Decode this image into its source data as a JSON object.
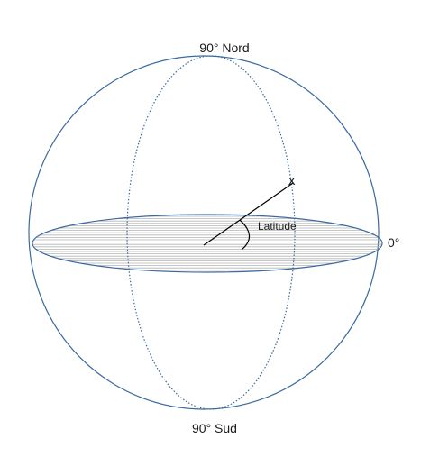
{
  "labels": {
    "north": "90° Nord",
    "south": "90° Sud",
    "equator": "0°",
    "angle": "Latitude",
    "point": "x"
  },
  "colors": {
    "outline": "#3b6aa0",
    "hatch": "#b3b3b3",
    "radius": "#000000"
  }
}
